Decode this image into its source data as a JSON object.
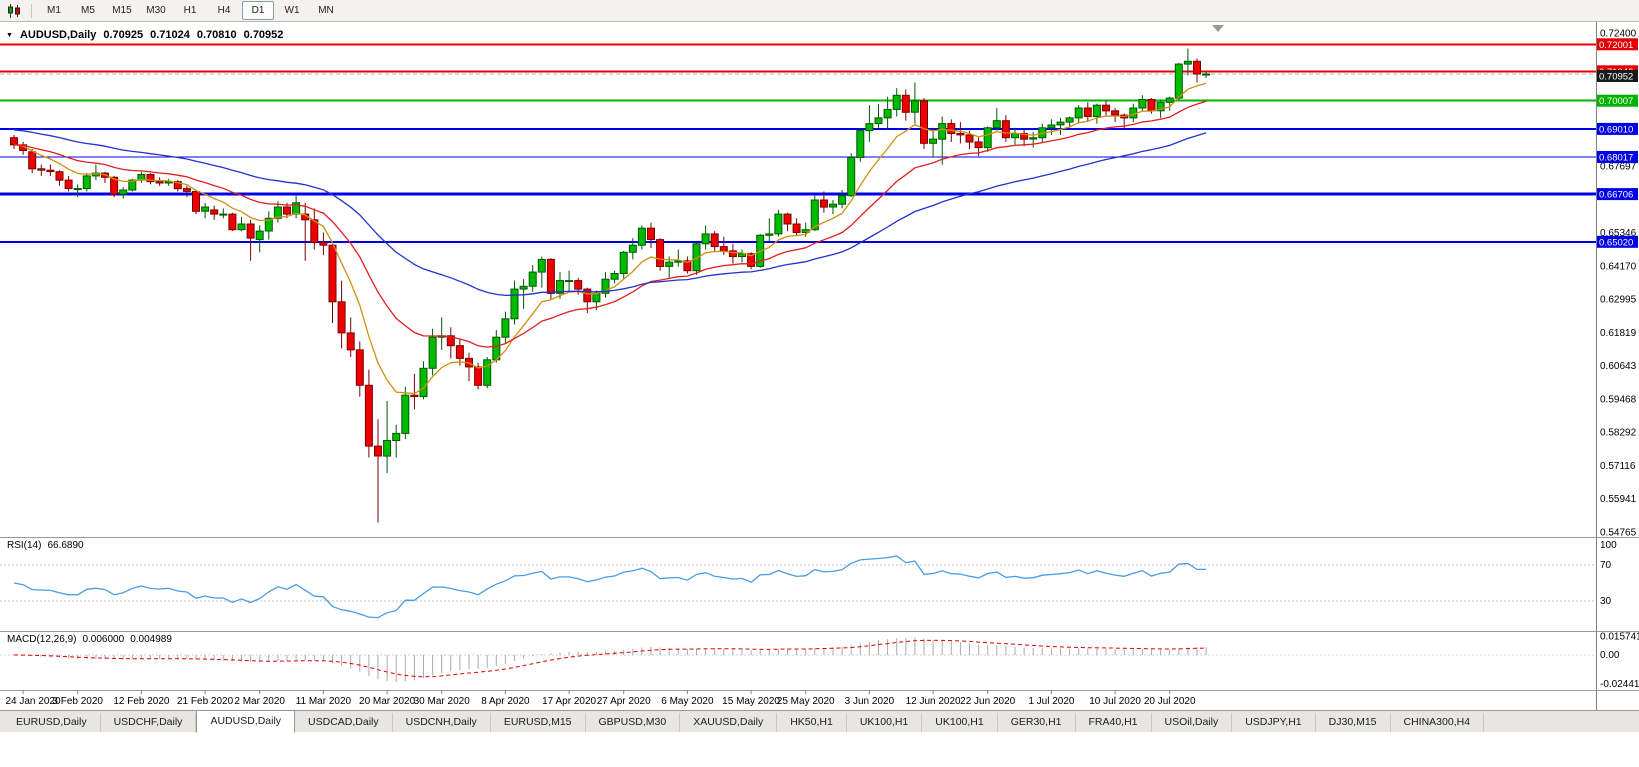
{
  "toolbar": {
    "timeframes": [
      "M1",
      "M5",
      "M15",
      "M30",
      "H1",
      "H4",
      "D1",
      "W1",
      "MN"
    ],
    "active_timeframe": "D1"
  },
  "chart": {
    "symbol_title": "AUDUSD,Daily",
    "open": "0.70925",
    "high": "0.71024",
    "low": "0.70810",
    "close": "0.70952"
  },
  "indicators": {
    "rsi": {
      "name": "RSI(14)",
      "value": "66.6890"
    },
    "macd": {
      "name": "MACD(12,26,9)",
      "value_main": "0.006000",
      "value_signal": "0.004989"
    }
  },
  "tabs": {
    "active_index": 2,
    "items": [
      "EURUSD,Daily",
      "USDCHF,Daily",
      "AUDUSD,Daily",
      "USDCAD,Daily",
      "USDCNH,Daily",
      "EURUSD,M15",
      "GBPUSD,M30",
      "XAUUSD,Daily",
      "HK50,H1",
      "UK100,H1",
      "UK100,H1",
      "GER30,H1",
      "FRA40,H1",
      "USOil,Daily",
      "USDJPY,H1",
      "DJ30,M15",
      "CHINA300,H4"
    ]
  },
  "chart_data": {
    "type": "candlestick",
    "symbol": "AUDUSD",
    "period": "Daily",
    "price_axis_ticks": [
      "0.72400",
      "0.71224",
      "0.70049",
      "0.68873",
      "0.67697",
      "0.66522",
      "0.65346",
      "0.64170",
      "0.62995",
      "0.61819",
      "0.60643",
      "0.59468",
      "0.58292",
      "0.57116",
      "0.55941",
      "0.54765"
    ],
    "x_axis_labels": [
      {
        "label": "24 Jan 2020",
        "candle_index": 1
      },
      {
        "label": "3 Feb 2020",
        "candle_index": 7
      },
      {
        "label": "12 Feb 2020",
        "candle_index": 14
      },
      {
        "label": "21 Feb 2020",
        "candle_index": 21
      },
      {
        "label": "2 Mar 2020",
        "candle_index": 27
      },
      {
        "label": "11 Mar 2020",
        "candle_index": 34
      },
      {
        "label": "20 Mar 2020",
        "candle_index": 41
      },
      {
        "label": "30 Mar 2020",
        "candle_index": 47
      },
      {
        "label": "8 Apr 2020",
        "candle_index": 54
      },
      {
        "label": "17 Apr 2020",
        "candle_index": 61
      },
      {
        "label": "27 Apr 2020",
        "candle_index": 67
      },
      {
        "label": "6 May 2020",
        "candle_index": 74
      },
      {
        "label": "15 May 2020",
        "candle_index": 81
      },
      {
        "label": "25 May 2020",
        "candle_index": 87
      },
      {
        "label": "3 Jun 2020",
        "candle_index": 94
      },
      {
        "label": "12 Jun 2020",
        "candle_index": 101
      },
      {
        "label": "22 Jun 2020",
        "candle_index": 107
      },
      {
        "label": "1 Jul 2020",
        "candle_index": 114
      },
      {
        "label": "10 Jul 2020",
        "candle_index": 121
      },
      {
        "label": "20 Jul 2020",
        "candle_index": 127
      }
    ],
    "candle_colors": {
      "up_fill": "#00bb00",
      "up_stroke": "#005800",
      "down_fill": "#ee0000",
      "down_stroke": "#7a0000"
    },
    "candles_ohlc": [
      [
        0.687,
        0.688,
        0.683,
        0.6845
      ],
      [
        0.6845,
        0.6855,
        0.681,
        0.6825
      ],
      [
        0.682,
        0.683,
        0.6745,
        0.676
      ],
      [
        0.676,
        0.6775,
        0.6735,
        0.6755
      ],
      [
        0.6755,
        0.6775,
        0.6735,
        0.675
      ],
      [
        0.675,
        0.6755,
        0.67,
        0.672
      ],
      [
        0.672,
        0.6735,
        0.668,
        0.669
      ],
      [
        0.669,
        0.6705,
        0.666,
        0.669
      ],
      [
        0.669,
        0.6745,
        0.668,
        0.6735
      ],
      [
        0.6735,
        0.6775,
        0.672,
        0.6745
      ],
      [
        0.6745,
        0.675,
        0.671,
        0.673
      ],
      [
        0.673,
        0.6735,
        0.666,
        0.667
      ],
      [
        0.667,
        0.6695,
        0.6655,
        0.6685
      ],
      [
        0.6685,
        0.6725,
        0.668,
        0.672
      ],
      [
        0.672,
        0.675,
        0.671,
        0.674
      ],
      [
        0.674,
        0.6745,
        0.6705,
        0.6715
      ],
      [
        0.6715,
        0.673,
        0.67,
        0.671
      ],
      [
        0.671,
        0.6725,
        0.67,
        0.6715
      ],
      [
        0.6715,
        0.672,
        0.668,
        0.669
      ],
      [
        0.669,
        0.67,
        0.666,
        0.668
      ],
      [
        0.668,
        0.6685,
        0.66,
        0.661
      ],
      [
        0.661,
        0.664,
        0.6585,
        0.6625
      ],
      [
        0.6615,
        0.663,
        0.658,
        0.66
      ],
      [
        0.66,
        0.662,
        0.6585,
        0.66
      ],
      [
        0.66,
        0.6605,
        0.654,
        0.6545
      ],
      [
        0.6545,
        0.659,
        0.654,
        0.6565
      ],
      [
        0.6565,
        0.658,
        0.6435,
        0.6515
      ],
      [
        0.651,
        0.656,
        0.6465,
        0.654
      ],
      [
        0.654,
        0.661,
        0.651,
        0.6585
      ],
      [
        0.6585,
        0.6645,
        0.657,
        0.6625
      ],
      [
        0.6625,
        0.664,
        0.6585,
        0.66
      ],
      [
        0.66,
        0.6665,
        0.6585,
        0.664
      ],
      [
        0.66,
        0.664,
        0.6435,
        0.658
      ],
      [
        0.658,
        0.662,
        0.6475,
        0.65
      ],
      [
        0.65,
        0.6535,
        0.6455,
        0.649
      ],
      [
        0.649,
        0.6495,
        0.6215,
        0.629
      ],
      [
        0.629,
        0.6365,
        0.6125,
        0.618
      ],
      [
        0.618,
        0.6235,
        0.6095,
        0.612
      ],
      [
        0.612,
        0.615,
        0.5955,
        0.5995
      ],
      [
        0.5995,
        0.605,
        0.574,
        0.578
      ],
      [
        0.578,
        0.5875,
        0.551,
        0.5745
      ],
      [
        0.5745,
        0.594,
        0.5685,
        0.58
      ],
      [
        0.58,
        0.5855,
        0.574,
        0.5825
      ],
      [
        0.5825,
        0.599,
        0.5805,
        0.596
      ],
      [
        0.596,
        0.6035,
        0.591,
        0.5955
      ],
      [
        0.5955,
        0.608,
        0.5945,
        0.6055
      ],
      [
        0.6055,
        0.6195,
        0.603,
        0.6165
      ],
      [
        0.6165,
        0.6235,
        0.612,
        0.617
      ],
      [
        0.617,
        0.62,
        0.609,
        0.6135
      ],
      [
        0.6135,
        0.616,
        0.6065,
        0.609
      ],
      [
        0.609,
        0.611,
        0.601,
        0.606
      ],
      [
        0.606,
        0.6075,
        0.598,
        0.5995
      ],
      [
        0.5995,
        0.6095,
        0.5985,
        0.6085
      ],
      [
        0.6085,
        0.619,
        0.6075,
        0.6165
      ],
      [
        0.6165,
        0.6255,
        0.6145,
        0.623
      ],
      [
        0.623,
        0.6365,
        0.621,
        0.6335
      ],
      [
        0.6335,
        0.637,
        0.6265,
        0.6345
      ],
      [
        0.6345,
        0.642,
        0.6325,
        0.6395
      ],
      [
        0.6395,
        0.645,
        0.634,
        0.644
      ],
      [
        0.644,
        0.6445,
        0.63,
        0.632
      ],
      [
        0.632,
        0.6395,
        0.63,
        0.6365
      ],
      [
        0.6365,
        0.64,
        0.633,
        0.6365
      ],
      [
        0.6365,
        0.6375,
        0.6315,
        0.6335
      ],
      [
        0.6335,
        0.634,
        0.625,
        0.629
      ],
      [
        0.629,
        0.633,
        0.626,
        0.632
      ],
      [
        0.632,
        0.6395,
        0.6305,
        0.637
      ],
      [
        0.637,
        0.64,
        0.6355,
        0.639
      ],
      [
        0.639,
        0.647,
        0.637,
        0.6465
      ],
      [
        0.6465,
        0.6515,
        0.644,
        0.649
      ],
      [
        0.649,
        0.656,
        0.6475,
        0.655
      ],
      [
        0.655,
        0.657,
        0.648,
        0.651
      ],
      [
        0.651,
        0.6515,
        0.64,
        0.6415
      ],
      [
        0.6415,
        0.645,
        0.6375,
        0.643
      ],
      [
        0.643,
        0.6475,
        0.6415,
        0.6435
      ],
      [
        0.6435,
        0.645,
        0.639,
        0.64
      ],
      [
        0.64,
        0.65,
        0.6385,
        0.6495
      ],
      [
        0.6495,
        0.656,
        0.6475,
        0.653
      ],
      [
        0.653,
        0.654,
        0.6465,
        0.6485
      ],
      [
        0.6485,
        0.652,
        0.6455,
        0.647
      ],
      [
        0.647,
        0.6495,
        0.6425,
        0.645
      ],
      [
        0.645,
        0.6475,
        0.643,
        0.646
      ],
      [
        0.646,
        0.6465,
        0.6405,
        0.6415
      ],
      [
        0.6415,
        0.653,
        0.641,
        0.6525
      ],
      [
        0.6525,
        0.6585,
        0.6505,
        0.653
      ],
      [
        0.653,
        0.6615,
        0.652,
        0.66
      ],
      [
        0.66,
        0.6605,
        0.654,
        0.6565
      ],
      [
        0.6565,
        0.6585,
        0.6525,
        0.6535
      ],
      [
        0.6535,
        0.657,
        0.652,
        0.6545
      ],
      [
        0.6545,
        0.6665,
        0.654,
        0.665
      ],
      [
        0.665,
        0.668,
        0.6605,
        0.6625
      ],
      [
        0.6625,
        0.665,
        0.66,
        0.6635
      ],
      [
        0.6635,
        0.6685,
        0.662,
        0.6665
      ],
      [
        0.6665,
        0.6815,
        0.666,
        0.68
      ],
      [
        0.68,
        0.69,
        0.6785,
        0.6895
      ],
      [
        0.6895,
        0.6985,
        0.6855,
        0.692
      ],
      [
        0.692,
        0.699,
        0.6905,
        0.694
      ],
      [
        0.694,
        0.7015,
        0.69,
        0.697
      ],
      [
        0.697,
        0.7045,
        0.6945,
        0.702
      ],
      [
        0.702,
        0.704,
        0.693,
        0.696
      ],
      [
        0.696,
        0.7065,
        0.692,
        0.7
      ],
      [
        0.7,
        0.701,
        0.683,
        0.685
      ],
      [
        0.685,
        0.6905,
        0.68,
        0.6865
      ],
      [
        0.6865,
        0.6945,
        0.6775,
        0.692
      ],
      [
        0.692,
        0.6935,
        0.6855,
        0.6885
      ],
      [
        0.6885,
        0.6925,
        0.685,
        0.688
      ],
      [
        0.688,
        0.6895,
        0.683,
        0.6855
      ],
      [
        0.6855,
        0.687,
        0.6805,
        0.6835
      ],
      [
        0.6835,
        0.691,
        0.682,
        0.6905
      ],
      [
        0.6905,
        0.6975,
        0.6895,
        0.693
      ],
      [
        0.693,
        0.695,
        0.6855,
        0.687
      ],
      [
        0.687,
        0.6905,
        0.6845,
        0.6885
      ],
      [
        0.6885,
        0.69,
        0.684,
        0.6865
      ],
      [
        0.6865,
        0.689,
        0.6835,
        0.687
      ],
      [
        0.687,
        0.692,
        0.6855,
        0.6905
      ],
      [
        0.6905,
        0.6935,
        0.688,
        0.6915
      ],
      [
        0.6915,
        0.694,
        0.688,
        0.6925
      ],
      [
        0.6925,
        0.6945,
        0.6905,
        0.694
      ],
      [
        0.694,
        0.6985,
        0.692,
        0.6975
      ],
      [
        0.6975,
        0.6995,
        0.6925,
        0.6945
      ],
      [
        0.6945,
        0.699,
        0.692,
        0.6985
      ],
      [
        0.6985,
        0.7,
        0.6945,
        0.6965
      ],
      [
        0.6965,
        0.6975,
        0.6925,
        0.695
      ],
      [
        0.695,
        0.6955,
        0.69,
        0.694
      ],
      [
        0.694,
        0.699,
        0.6925,
        0.6975
      ],
      [
        0.6975,
        0.702,
        0.6965,
        0.7005
      ],
      [
        0.7005,
        0.701,
        0.6955,
        0.6965
      ],
      [
        0.6965,
        0.7005,
        0.694,
        0.6995
      ],
      [
        0.6995,
        0.7015,
        0.6965,
        0.701
      ],
      [
        0.701,
        0.7135,
        0.7005,
        0.713
      ],
      [
        0.713,
        0.7185,
        0.709,
        0.714
      ],
      [
        0.714,
        0.715,
        0.7065,
        0.7095
      ],
      [
        0.70925,
        0.71024,
        0.7081,
        0.70952
      ]
    ],
    "horizontal_lines": [
      {
        "price": 0.72001,
        "label": "0.72001",
        "color": "#e60000",
        "width": 2
      },
      {
        "price": 0.71046,
        "label": "0.71046",
        "color": "#e60000",
        "width": 2
      },
      {
        "price": 0.70007,
        "label": "0.70007",
        "color": "#00b300",
        "width": 2
      },
      {
        "price": 0.6901,
        "label": "0.69010",
        "color": "#0000e6",
        "width": 2
      },
      {
        "price": 0.68017,
        "label": "0.68017",
        "color": "#0000e6",
        "width": 1
      },
      {
        "price": 0.66706,
        "label": "0.66706",
        "color": "#0000e6",
        "width": 3
      },
      {
        "price": 0.6502,
        "label": "0.65020",
        "color": "#0000e6",
        "width": 2
      }
    ],
    "bid_price": {
      "value": 0.70952,
      "label": "0.70952",
      "badge_color": "#1a1a1a",
      "line_color": "#b0b0b0"
    },
    "moving_averages": [
      {
        "name": "ma-fast",
        "method": "ema",
        "period": 8,
        "color": "#d09010"
      },
      {
        "name": "ma-mid",
        "method": "ema",
        "period": 20,
        "color": "#e02020"
      },
      {
        "name": "ma-slow",
        "method": "ema",
        "period": 45,
        "color": "#2233cc",
        "seed": 0.69
      }
    ],
    "rsi": {
      "period": 14,
      "color": "#4a9ce8",
      "dashed_levels": [
        70,
        30
      ],
      "scale_labels": [
        100,
        70,
        30
      ],
      "current": 66.689
    },
    "macd": {
      "fast": 12,
      "slow": 26,
      "signal": 9,
      "histogram_color": "#aaaaaa",
      "signal_color": "#dd0000",
      "scale_labels": [
        {
          "text": "0.015741",
          "value": 0.015741
        },
        {
          "text": "0.00",
          "value": 0
        },
        {
          "text": "-0.024412",
          "value": -0.024412
        }
      ],
      "current_macd": 0.006,
      "current_signal": 0.004989
    }
  }
}
